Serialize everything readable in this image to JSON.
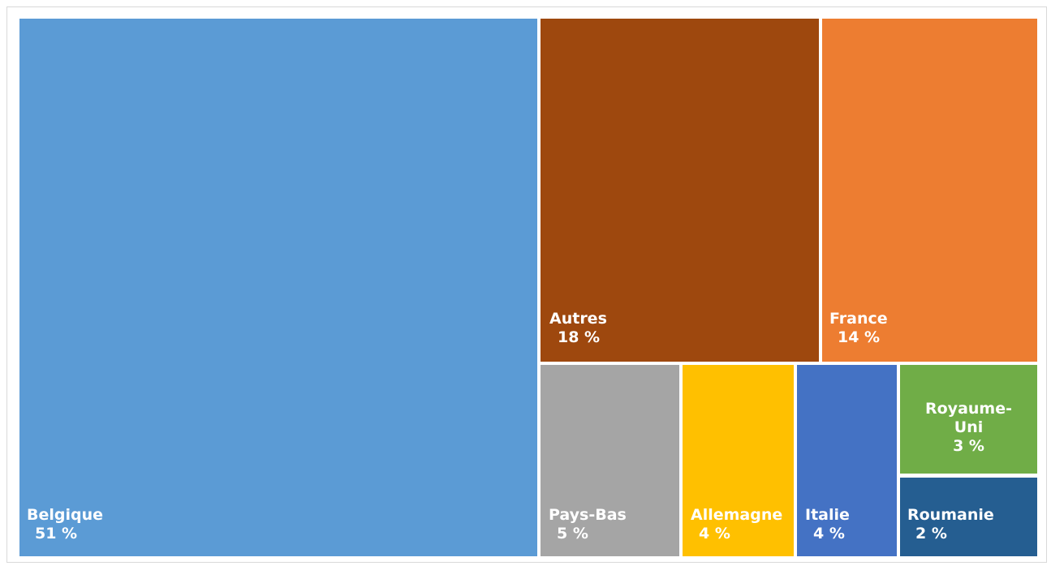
{
  "chart_data": {
    "type": "treemap",
    "title": "",
    "unit": "%",
    "items": [
      {
        "name": "Belgique",
        "value": 51,
        "label": "51 %",
        "color": "#5B9BD5"
      },
      {
        "name": "Autres",
        "value": 18,
        "label": "18 %",
        "color": "#9E480E"
      },
      {
        "name": "France",
        "value": 14,
        "label": "14 %",
        "color": "#ED7D31"
      },
      {
        "name": "Pays-Bas",
        "value": 5,
        "label": "5 %",
        "color": "#A5A5A5"
      },
      {
        "name": "Allemagne",
        "value": 4,
        "label": "4 %",
        "color": "#FFC000"
      },
      {
        "name": "Italie",
        "value": 4,
        "label": "4 %",
        "color": "#4472C4"
      },
      {
        "name": "Royaume-Uni",
        "value": 3,
        "label": "3 %",
        "color": "#70AD47"
      },
      {
        "name": "Roumanie",
        "value": 2,
        "label": "2 %",
        "color": "#255E91"
      }
    ]
  }
}
